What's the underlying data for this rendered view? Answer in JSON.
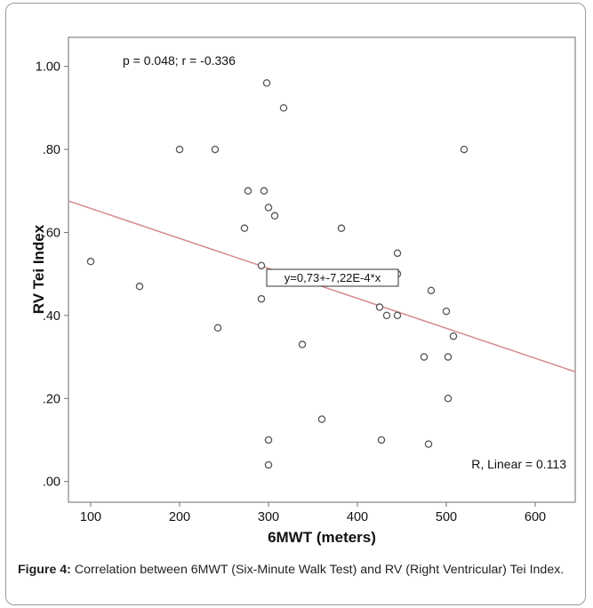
{
  "chart_data": {
    "type": "scatter",
    "xlabel": "6MWT (meters)",
    "ylabel": "RV Tei Index",
    "xlim": [
      75,
      645
    ],
    "ylim": [
      -0.05,
      1.07
    ],
    "x_ticks": [
      100,
      200,
      300,
      400,
      500,
      600
    ],
    "x_tick_labels": [
      "100",
      "200",
      "300",
      "400",
      "500",
      "600"
    ],
    "y_ticks": [
      0.0,
      0.2,
      0.4,
      0.6,
      0.8,
      1.0
    ],
    "y_tick_labels": [
      ".00",
      ".20",
      ".40",
      ".60",
      ".80",
      "1.00"
    ],
    "grid": false,
    "points": [
      {
        "x": 100,
        "y": 0.53
      },
      {
        "x": 155,
        "y": 0.47
      },
      {
        "x": 200,
        "y": 0.8
      },
      {
        "x": 240,
        "y": 0.8
      },
      {
        "x": 243,
        "y": 0.37
      },
      {
        "x": 273,
        "y": 0.61
      },
      {
        "x": 277,
        "y": 0.7
      },
      {
        "x": 292,
        "y": 0.52
      },
      {
        "x": 292,
        "y": 0.44
      },
      {
        "x": 295,
        "y": 0.7
      },
      {
        "x": 298,
        "y": 0.96
      },
      {
        "x": 300,
        "y": 0.66
      },
      {
        "x": 300,
        "y": 0.1
      },
      {
        "x": 300,
        "y": 0.04
      },
      {
        "x": 307,
        "y": 0.64
      },
      {
        "x": 317,
        "y": 0.9
      },
      {
        "x": 338,
        "y": 0.33
      },
      {
        "x": 360,
        "y": 0.15
      },
      {
        "x": 382,
        "y": 0.61
      },
      {
        "x": 425,
        "y": 0.42
      },
      {
        "x": 427,
        "y": 0.1
      },
      {
        "x": 433,
        "y": 0.4
      },
      {
        "x": 445,
        "y": 0.55
      },
      {
        "x": 445,
        "y": 0.5
      },
      {
        "x": 445,
        "y": 0.4
      },
      {
        "x": 475,
        "y": 0.3
      },
      {
        "x": 480,
        "y": 0.09
      },
      {
        "x": 483,
        "y": 0.46
      },
      {
        "x": 500,
        "y": 0.41
      },
      {
        "x": 502,
        "y": 0.3
      },
      {
        "x": 502,
        "y": 0.2
      },
      {
        "x": 508,
        "y": 0.35
      },
      {
        "x": 520,
        "y": 0.8
      }
    ],
    "fit_line": {
      "intercept": 0.73,
      "slope": -0.000722
    },
    "annotations": {
      "stats": "p = 0.048; r = -0.336",
      "equation": "y=0,73+-7,22E-4*x",
      "r_squared": "R, Linear = 0.113"
    },
    "colors": {
      "fit_line": "#d6898c",
      "marker": "#555555",
      "plot_border": "#6e6e6e"
    }
  },
  "caption": {
    "label": "Figure 4:",
    "text": " Correlation between 6MWT (Six-Minute Walk Test) and RV (Right Ventricular) Tei Index."
  }
}
